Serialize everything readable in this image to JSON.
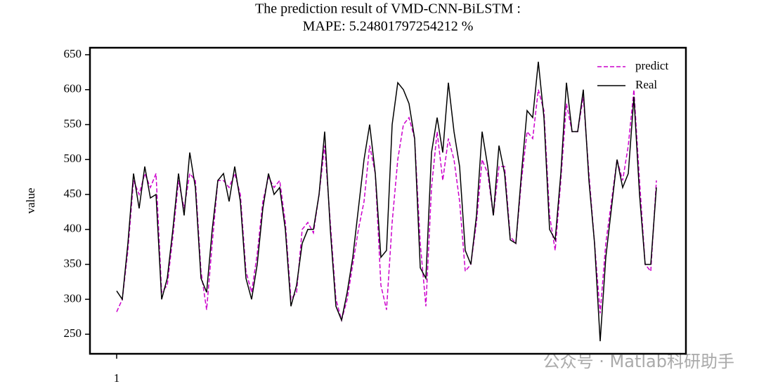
{
  "chart_data": {
    "type": "line",
    "title": "The prediction result of VMD-CNN-BiLSTM :",
    "subtitle": "MAPE: 5.24801797254212 %",
    "ylabel": "value",
    "watermark": "公众号 · Matlab科研助手",
    "x": [
      1,
      2,
      3,
      4,
      5,
      6,
      7,
      8,
      9,
      10,
      11,
      12,
      13,
      14,
      15,
      16,
      17,
      18,
      19,
      20,
      21,
      22,
      23,
      24,
      25,
      26,
      27,
      28,
      29,
      30,
      31,
      32,
      33,
      34,
      35,
      36,
      37,
      38,
      39,
      40,
      41,
      42,
      43,
      44,
      45,
      46,
      47,
      48,
      49,
      50,
      51,
      52,
      53,
      54,
      55,
      56,
      57,
      58,
      59,
      60,
      61,
      62,
      63,
      64,
      65,
      66,
      67,
      68,
      69,
      70,
      71,
      72,
      73,
      74,
      75,
      76,
      77,
      78,
      79,
      80,
      81,
      82,
      83,
      84,
      85,
      86,
      87,
      88,
      89,
      90,
      91,
      92,
      93,
      94,
      95,
      96,
      97
    ],
    "series": [
      {
        "name": "predict",
        "color": "#cc00cc",
        "dash": true,
        "values": [
          282,
          300,
          370,
          470,
          450,
          480,
          460,
          480,
          310,
          320,
          390,
          470,
          430,
          480,
          470,
          340,
          285,
          380,
          470,
          470,
          460,
          480,
          450,
          340,
          310,
          365,
          440,
          475,
          460,
          470,
          410,
          300,
          310,
          400,
          410,
          395,
          450,
          520,
          410,
          300,
          270,
          300,
          350,
          400,
          440,
          520,
          480,
          320,
          285,
          410,
          500,
          550,
          560,
          530,
          380,
          290,
          460,
          540,
          470,
          530,
          500,
          440,
          340,
          350,
          410,
          500,
          480,
          420,
          490,
          490,
          390,
          380,
          470,
          540,
          530,
          600,
          570,
          420,
          370,
          470,
          580,
          540,
          540,
          590,
          480,
          380,
          280,
          380,
          440,
          500,
          470,
          520,
          600,
          470,
          350,
          340,
          470
        ]
      },
      {
        "name": "Real",
        "color": "#000000",
        "dash": false,
        "values": [
          312,
          300,
          380,
          480,
          430,
          490,
          445,
          450,
          300,
          330,
          400,
          480,
          420,
          510,
          460,
          330,
          310,
          400,
          470,
          480,
          440,
          490,
          440,
          330,
          300,
          350,
          430,
          480,
          450,
          460,
          400,
          290,
          320,
          380,
          400,
          400,
          450,
          540,
          400,
          290,
          270,
          310,
          360,
          430,
          500,
          550,
          480,
          360,
          370,
          550,
          610,
          600,
          580,
          530,
          345,
          330,
          510,
          560,
          510,
          610,
          540,
          490,
          370,
          350,
          420,
          540,
          490,
          420,
          520,
          480,
          385,
          380,
          480,
          570,
          560,
          640,
          560,
          400,
          385,
          480,
          610,
          540,
          540,
          600,
          470,
          380,
          240,
          360,
          430,
          500,
          460,
          480,
          590,
          450,
          350,
          350,
          460
        ]
      }
    ],
    "xlim": [
      -3.75,
      102.25
    ],
    "xticks": [
      1
    ],
    "ylim": [
      222,
      660
    ],
    "yticks": [
      250,
      300,
      350,
      400,
      450,
      500,
      550,
      600,
      650
    ],
    "legend": "upper right"
  }
}
